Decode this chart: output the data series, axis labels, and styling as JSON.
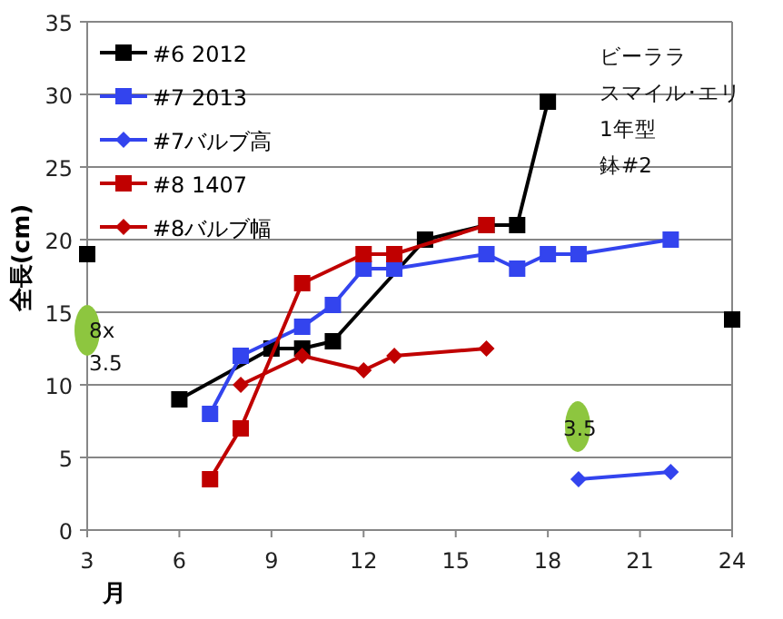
{
  "chart_data": {
    "type": "line",
    "xlabel": "月",
    "ylabel": "全長(cm)",
    "xlim": [
      3,
      24
    ],
    "xticks": [
      3,
      6,
      9,
      12,
      15,
      18,
      21,
      24
    ],
    "ylim": [
      0,
      35
    ],
    "yticks": [
      0,
      5,
      10,
      15,
      20,
      25,
      30,
      35
    ],
    "grid": "y",
    "legend": "top left",
    "series": [
      {
        "name": "#6 2012",
        "color": "#000000",
        "marker": "square",
        "x": [
          3,
          4,
          6,
          9,
          10,
          11,
          14,
          16,
          17,
          18,
          20,
          24
        ],
        "values": [
          19,
          null,
          9,
          12.5,
          12.5,
          13,
          20,
          21,
          21,
          29.5,
          null,
          14.5
        ]
      },
      {
        "name": "#7 2013",
        "color": "#3344ee",
        "marker": "square",
        "x": [
          7,
          8,
          10,
          11,
          12,
          13,
          16,
          17,
          18,
          19,
          22
        ],
        "values": [
          8,
          12,
          14,
          15.5,
          18,
          18,
          19,
          18,
          19,
          19,
          20
        ]
      },
      {
        "name": "#7バルブ高",
        "color": "#3344ee",
        "marker": "diamond",
        "x": [
          19,
          22
        ],
        "values": [
          3.5,
          4
        ]
      },
      {
        "name": "#8 1407",
        "color": "#c00000",
        "marker": "square",
        "x": [
          7,
          8,
          10,
          12,
          13,
          16
        ],
        "values": [
          3.5,
          7,
          17,
          19,
          19,
          21
        ]
      },
      {
        "name": "#8バルブ幅",
        "color": "#c00000",
        "marker": "diamond",
        "x": [
          8,
          10,
          12,
          13,
          16
        ],
        "values": [
          10,
          12,
          11,
          12,
          12.5
        ]
      }
    ],
    "annotations": [
      "ビーララ",
      "スマイル･エリ",
      "1年型",
      "鉢#2",
      "8x",
      "3.5",
      "3.5"
    ]
  }
}
